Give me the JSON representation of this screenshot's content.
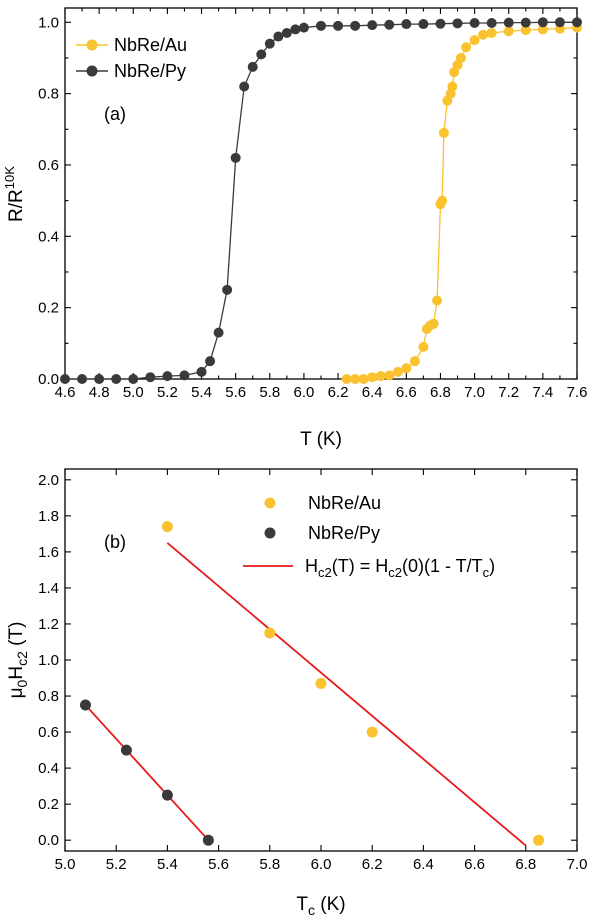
{
  "colors": {
    "gold": "#F9C22E",
    "dark": "#3A3A3A",
    "fit": "#E8191A",
    "line": "#000000"
  },
  "chart_data": [
    {
      "type": "line",
      "panel_label": "(a)",
      "xlabel": "T (K)",
      "ylabel": {
        "base": "R/R",
        "sup": "10K"
      },
      "xlim": [
        4.6,
        7.6
      ],
      "ylim": [
        0.0,
        1.04
      ],
      "xticks": [
        4.6,
        4.7,
        4.8,
        4.9,
        5.0,
        5.1,
        5.2,
        5.3,
        5.4,
        5.5,
        5.6,
        5.7,
        5.8,
        5.9,
        6.0,
        6.1,
        6.2,
        6.3,
        6.4,
        6.5,
        6.6,
        6.7,
        6.8,
        6.9,
        7.0,
        7.1,
        7.2,
        7.3,
        7.4,
        7.5,
        7.6
      ],
      "xtick_labels": [
        "4.6",
        "",
        "4.8",
        "",
        "5.0",
        "",
        "5.2",
        "",
        "5.4",
        "",
        "5.6",
        "",
        "5.8",
        "",
        "6.0",
        "",
        "6.2",
        "",
        "6.4",
        "",
        "6.6",
        "",
        "6.8",
        "",
        "7.0",
        "",
        "7.2",
        "",
        "7.4",
        "",
        "7.6"
      ],
      "yticks": [
        0.0,
        0.1,
        0.2,
        0.3,
        0.4,
        0.5,
        0.6,
        0.7,
        0.8,
        0.9,
        1.0
      ],
      "ytick_labels": [
        "0.0",
        "",
        "0.2",
        "",
        "0.4",
        "",
        "0.6",
        "",
        "0.8",
        "",
        "1.0"
      ],
      "legend": "top-left",
      "series": [
        {
          "name": "NbRe/Au",
          "color": "#F9C22E",
          "x": [
            6.25,
            6.3,
            6.35,
            6.4,
            6.45,
            6.5,
            6.55,
            6.6,
            6.65,
            6.7,
            6.72,
            6.74,
            6.76,
            6.78,
            6.8,
            6.81,
            6.82,
            6.84,
            6.86,
            6.87,
            6.88,
            6.9,
            6.92,
            6.95,
            7.0,
            7.05,
            7.1,
            7.2,
            7.3,
            7.4,
            7.5,
            7.6
          ],
          "y": [
            0.0,
            0.0,
            0.0,
            0.005,
            0.008,
            0.01,
            0.02,
            0.03,
            0.05,
            0.09,
            0.14,
            0.15,
            0.155,
            0.22,
            0.49,
            0.5,
            0.69,
            0.78,
            0.8,
            0.82,
            0.86,
            0.88,
            0.9,
            0.93,
            0.95,
            0.965,
            0.97,
            0.975,
            0.978,
            0.98,
            0.982,
            0.985
          ]
        },
        {
          "name": "NbRe/Py",
          "color": "#3A3A3A",
          "x": [
            4.6,
            4.7,
            4.8,
            4.9,
            5.0,
            5.1,
            5.2,
            5.3,
            5.4,
            5.45,
            5.5,
            5.55,
            5.6,
            5.65,
            5.7,
            5.75,
            5.8,
            5.85,
            5.9,
            5.95,
            6.0,
            6.1,
            6.2,
            6.3,
            6.4,
            6.5,
            6.6,
            6.7,
            6.8,
            6.9,
            7.0,
            7.1,
            7.2,
            7.3,
            7.4,
            7.5,
            7.6
          ],
          "y": [
            0.0,
            0.0,
            0.0,
            0.0,
            0.0,
            0.005,
            0.008,
            0.01,
            0.02,
            0.05,
            0.13,
            0.25,
            0.62,
            0.82,
            0.875,
            0.91,
            0.94,
            0.96,
            0.97,
            0.98,
            0.985,
            0.99,
            0.99,
            0.99,
            0.992,
            0.993,
            0.995,
            0.995,
            0.996,
            0.997,
            0.998,
            0.998,
            0.999,
            0.999,
            1.0,
            1.0,
            1.0
          ]
        }
      ]
    },
    {
      "type": "scatter",
      "panel_label": "(b)",
      "xlabel": {
        "base": "T",
        "sub": "c",
        "rest": " (K)"
      },
      "ylabel": {
        "pre": "μ",
        "sub1": "0",
        "mid": "H",
        "sub2": "c2",
        "post": " (T)"
      },
      "xlim": [
        5.0,
        7.0
      ],
      "ylim": [
        -0.06,
        2.06
      ],
      "xticks": [
        5.0,
        5.2,
        5.4,
        5.6,
        5.8,
        6.0,
        6.2,
        6.4,
        6.6,
        6.8,
        7.0
      ],
      "xtick_labels": [
        "5.0",
        "5.2",
        "5.4",
        "5.6",
        "5.8",
        "6.0",
        "6.2",
        "6.4",
        "6.6",
        "6.8",
        "7.0"
      ],
      "yticks": [
        0.0,
        0.2,
        0.4,
        0.6,
        0.8,
        1.0,
        1.2,
        1.4,
        1.6,
        1.8,
        2.0
      ],
      "ytick_labels": [
        "0.0",
        "0.2",
        "0.4",
        "0.6",
        "0.8",
        "1.0",
        "1.2",
        "1.4",
        "1.6",
        "1.8",
        "2.0"
      ],
      "legend": "top-right",
      "series": [
        {
          "name": "NbRe/Au",
          "color": "#F9C22E",
          "x": [
            5.4,
            5.8,
            6.0,
            6.2,
            6.85
          ],
          "y": [
            1.74,
            1.15,
            0.87,
            0.6,
            0.0
          ]
        },
        {
          "name": "NbRe/Py",
          "color": "#3A3A3A",
          "x": [
            5.08,
            5.24,
            5.4,
            5.56
          ],
          "y": [
            0.75,
            0.5,
            0.25,
            0.0
          ]
        }
      ],
      "fits": [
        {
          "color": "#E8191A",
          "x": [
            5.4,
            6.8
          ],
          "y": [
            1.65,
            -0.03
          ]
        },
        {
          "color": "#E8191A",
          "x": [
            5.08,
            5.56
          ],
          "y": [
            0.75,
            0.0
          ]
        }
      ],
      "fit_legend": {
        "p1": "H",
        "s1": "c2",
        "p2": "(T) = H",
        "s2": "c2",
        "p3": "(0)(1 - T/T",
        "s3": "c",
        "p4": ")"
      }
    }
  ]
}
